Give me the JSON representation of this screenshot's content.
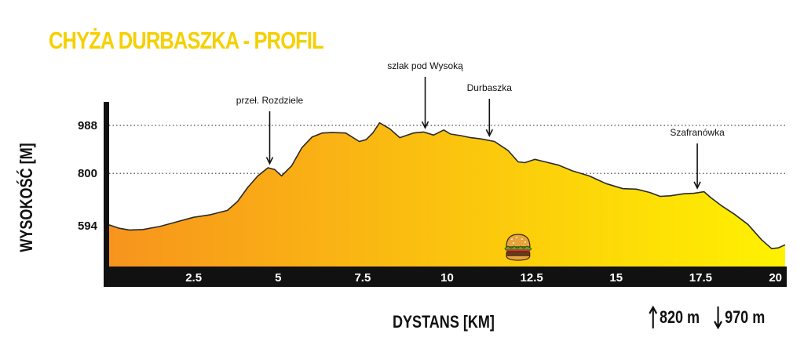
{
  "colors": {
    "title": "#f5d000",
    "fill_start": "#f7941d",
    "fill_end": "#fff200",
    "axis": "#111111"
  },
  "icons": {
    "food_marker": "burger-icon",
    "up": "arrow-up-icon",
    "down": "arrow-down-icon"
  },
  "stats": {
    "ascent": "820 m",
    "descent": "970 m"
  },
  "chart_data": {
    "type": "area",
    "title": "CHYŻA DURBASZKA - PROFIL",
    "xlabel": "DYSTANS [KM]",
    "ylabel": "WYSOKOŚĆ [M]",
    "xlim": [
      0,
      20
    ],
    "ylim": [
      435,
      1080
    ],
    "x_ticks": [
      2.5,
      5,
      7.5,
      10,
      12.5,
      15,
      17.5,
      20
    ],
    "x_tick_labels": [
      "2.5",
      "5",
      "7.5",
      "10",
      "12.5",
      "15",
      "17.5",
      "20"
    ],
    "y_ticks": [
      594,
      800,
      988
    ],
    "y_tick_labels": [
      "594",
      "800",
      "988"
    ],
    "reference_lines": [
      800,
      988
    ],
    "grid": false,
    "series": [
      {
        "x": [
          0,
          0.3,
          0.6,
          1.0,
          1.5,
          2.0,
          2.5,
          3.0,
          3.5,
          3.8,
          4.1,
          4.4,
          4.7,
          4.9,
          5.1,
          5.4,
          5.7,
          6.0,
          6.3,
          6.6,
          7.0,
          7.4,
          7.6,
          7.8,
          8.0,
          8.3,
          8.6,
          9.0,
          9.3,
          9.6,
          9.9,
          10.1,
          10.4,
          10.7,
          11.0,
          11.4,
          11.8,
          12.1,
          12.3,
          12.6,
          12.9,
          13.3,
          13.7,
          14.2,
          14.7,
          15.2,
          15.6,
          16.0,
          16.3,
          16.6,
          17.0,
          17.3,
          17.6,
          17.8,
          18.1,
          18.5,
          18.9,
          19.3,
          19.6,
          19.8,
          20
        ],
        "y": [
          598,
          585,
          578,
          580,
          592,
          610,
          628,
          638,
          655,
          690,
          745,
          790,
          822,
          815,
          790,
          830,
          900,
          942,
          958,
          960,
          958,
          925,
          932,
          958,
          998,
          975,
          940,
          958,
          962,
          950,
          970,
          954,
          948,
          940,
          935,
          925,
          890,
          845,
          842,
          855,
          845,
          832,
          810,
          790,
          760,
          740,
          738,
          725,
          710,
          712,
          720,
          722,
          728,
          705,
          675,
          640,
          600,
          540,
          505,
          508,
          520
        ]
      }
    ],
    "annotations": [
      {
        "label": "przeł. Rozdziele",
        "x": 4.75
      },
      {
        "label": "szlak pod Wysoką",
        "x": 9.35
      },
      {
        "label": "Durbaszka",
        "x": 11.25
      },
      {
        "label": "Szafranówka",
        "x": 17.4
      }
    ],
    "markers": [
      {
        "icon": "burger-icon",
        "x": 12.1
      }
    ]
  }
}
